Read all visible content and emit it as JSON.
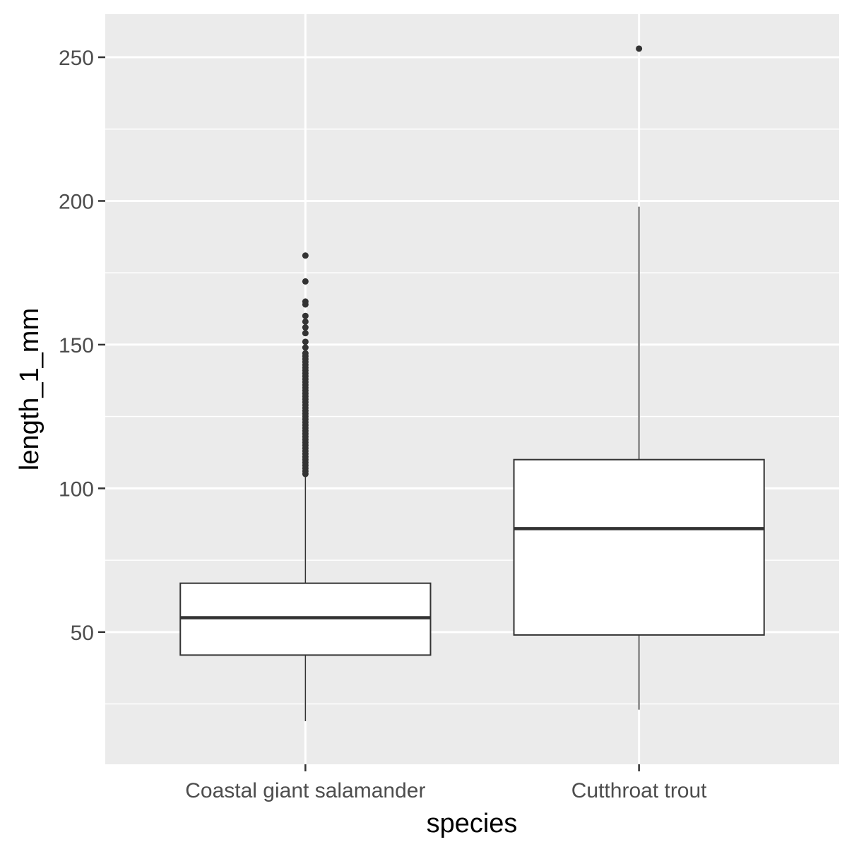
{
  "chart_data": {
    "type": "boxplot",
    "xlabel": "species",
    "ylabel": "length_1_mm",
    "categories": [
      "Coastal giant salamander",
      "Cutthroat trout"
    ],
    "ylim": [
      4,
      265
    ],
    "y_ticks": [
      50,
      100,
      150,
      200,
      250
    ],
    "grid": true,
    "legend": "none",
    "boxes": [
      {
        "category": "Coastal giant salamander",
        "whisker_low": 19,
        "q1": 42,
        "median": 55,
        "q3": 67,
        "whisker_high": 104,
        "outliers": [
          105,
          106,
          107,
          108,
          109,
          110,
          111,
          112,
          113,
          114,
          115,
          116,
          117,
          118,
          119,
          120,
          121,
          122,
          123,
          124,
          125,
          126,
          127,
          128,
          129,
          130,
          131,
          132,
          133,
          134,
          135,
          136,
          137,
          138,
          139,
          140,
          141,
          142,
          143,
          144,
          145,
          146,
          147,
          149,
          151,
          154,
          156,
          158,
          160,
          164,
          165,
          172,
          181
        ]
      },
      {
        "category": "Cutthroat trout",
        "whisker_low": 23,
        "q1": 49,
        "median": 86,
        "q3": 110,
        "whisker_high": 198,
        "outliers": [
          253
        ]
      }
    ],
    "colors": {
      "panel": "#ebebeb",
      "grid": "#ffffff",
      "box_fill": "#ffffff",
      "box_stroke": "#333333",
      "tick_text": "#4d4d4d",
      "title_text": "#000000"
    }
  }
}
